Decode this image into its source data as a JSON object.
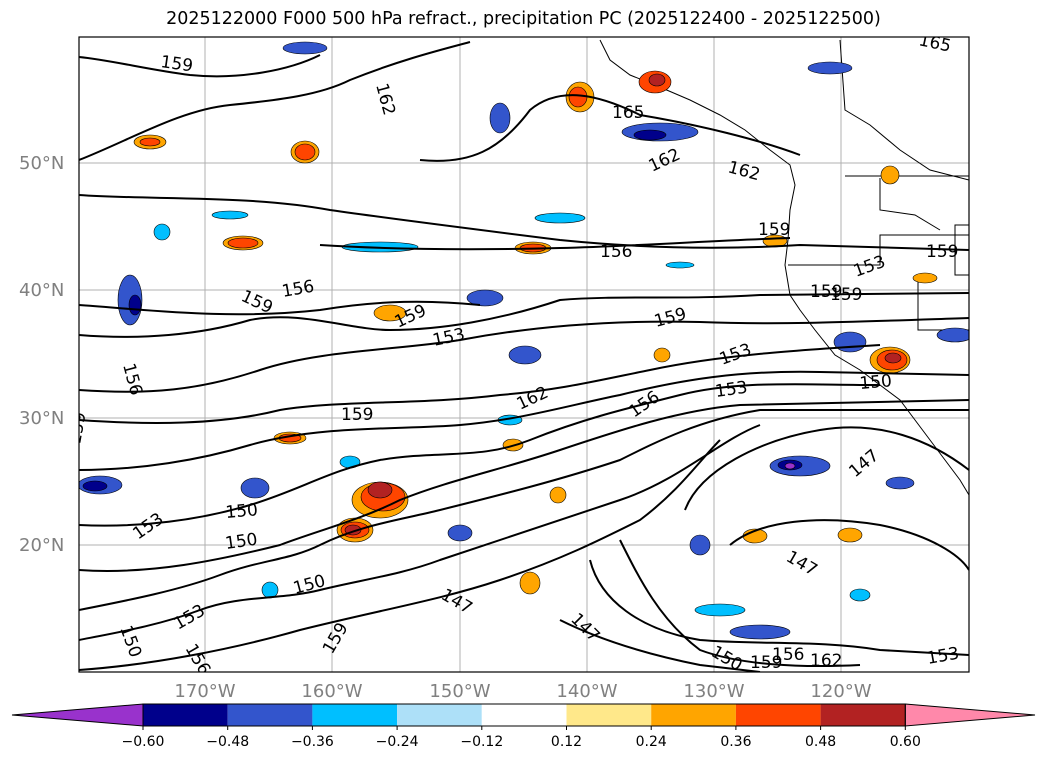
{
  "title": "2025122000 F000 500 hPa refract., precipitation PC (2025122400 - 2025122500)",
  "lat_labels": [
    "50°N",
    "40°N",
    "30°N",
    "20°N"
  ],
  "lon_labels": [
    "170°W",
    "160°W",
    "150°W",
    "140°W",
    "130°W",
    "120°W"
  ],
  "contour_labels": [
    "159",
    "162",
    "165",
    "165",
    "162",
    "162",
    "159",
    "156",
    "156",
    "159",
    "159",
    "159",
    "153",
    "159",
    "153",
    "153",
    "156",
    "159",
    "162",
    "156",
    "153",
    "150",
    "159",
    "150",
    "150",
    "150",
    "147",
    "147",
    "147",
    "147",
    "153",
    "150",
    "159",
    "156",
    "153",
    "150",
    "159",
    "162",
    "159",
    "156",
    "153",
    "159"
  ],
  "colorbar": {
    "ticks": [
      "−0.60",
      "−0.48",
      "−0.36",
      "−0.24",
      "−0.12",
      "0.12",
      "0.24",
      "0.36",
      "0.48",
      "0.60"
    ],
    "colors": [
      "#9932CC",
      "#00008B",
      "#3355CC",
      "#00BFFF",
      "#ADE0F8",
      "#FFFFFF",
      "#FFE88A",
      "#FFA500",
      "#FF4500",
      "#B22222",
      "#FF88AA"
    ]
  }
}
